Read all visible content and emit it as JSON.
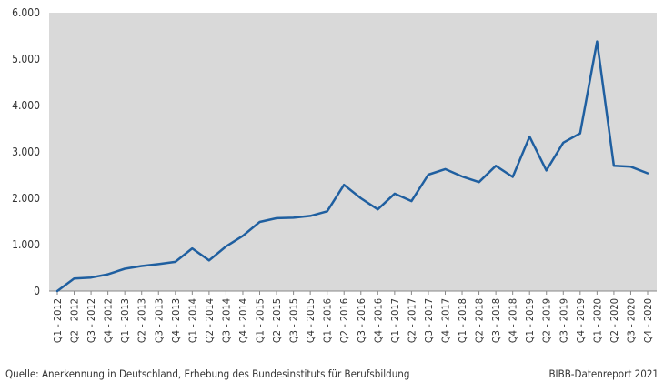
{
  "chart_data": {
    "type": "line",
    "title": "",
    "xlabel": "",
    "ylabel": "",
    "ylim": [
      0,
      6000
    ],
    "yticks": [
      0,
      1000,
      2000,
      3000,
      4000,
      5000,
      6000
    ],
    "ytick_labels": [
      "0",
      "1.000",
      "2.000",
      "3.000",
      "4.000",
      "5.000",
      "6.000"
    ],
    "grid": false,
    "legend": "none",
    "colors": {
      "line": "#1f5fa0",
      "plot_bg": "#d9d9d9",
      "axis": "#888888",
      "text": "#333333"
    },
    "categories": [
      "Q1 - 2012",
      "Q2 - 2012",
      "Q3 - 2012",
      "Q4 - 2012",
      "Q1 - 2013",
      "Q2 - 2013",
      "Q3 - 2013",
      "Q4 - 2013",
      "Q1 - 2014",
      "Q2 - 2014",
      "Q3 - 2014",
      "Q4 - 2014",
      "Q1 - 2015",
      "Q2 - 2015",
      "Q3 - 2015",
      "Q4 - 2015",
      "Q1 - 2016",
      "Q2 - 2016",
      "Q3 - 2016",
      "Q4 - 2016",
      "Q1 - 2017",
      "Q2 - 2017",
      "Q3 - 2017",
      "Q4 - 2017",
      "Q1 - 2018",
      "Q2 - 2018",
      "Q3 - 2018",
      "Q4 - 2018",
      "Q1 - 2019",
      "Q2 - 2019",
      "Q3 - 2019",
      "Q4 - 2019",
      "Q1 - 2020",
      "Q2 - 2020",
      "Q3 - 2020",
      "Q4 - 2020"
    ],
    "series": [
      {
        "values": [
          0,
          270,
          290,
          360,
          480,
          540,
          580,
          630,
          920,
          660,
          960,
          1190,
          1490,
          1570,
          1580,
          1620,
          1720,
          2290,
          2000,
          1760,
          2100,
          1940,
          2510,
          2630,
          2470,
          2350,
          2700,
          2460,
          3330,
          2600,
          3200,
          3400,
          5380,
          2700,
          2680,
          2540
        ]
      }
    ]
  },
  "footer": {
    "source": "Quelle: Anerkennung in Deutschland, Erhebung des Bundesinstituts für Berufsbildung",
    "credit": "BIBB-Datenreport 2021"
  }
}
